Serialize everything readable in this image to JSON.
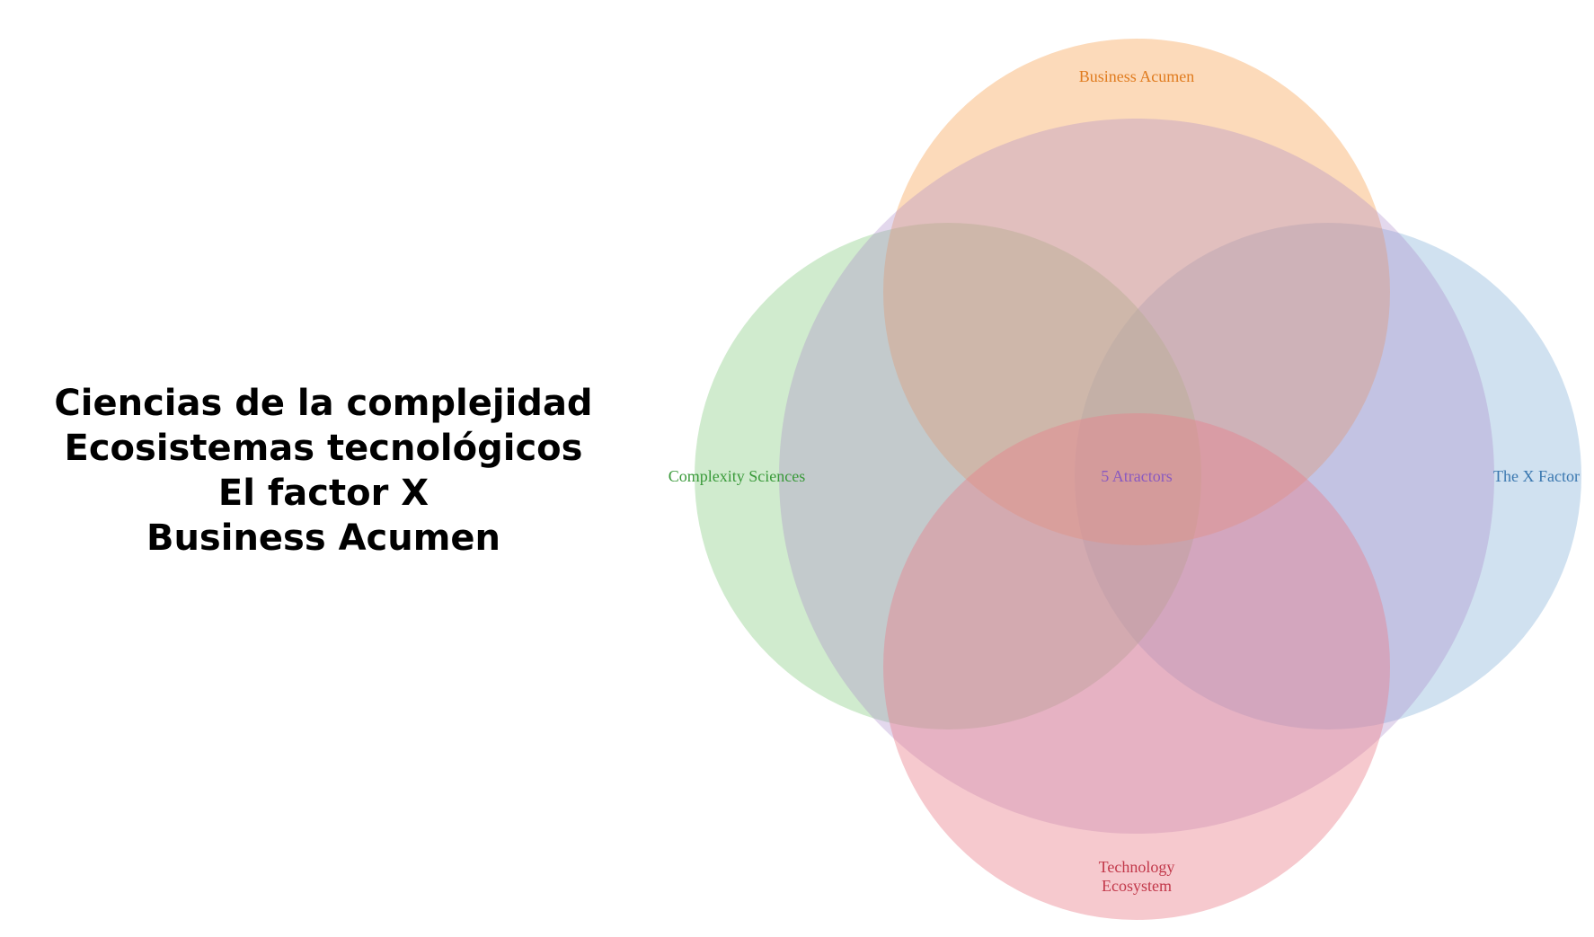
{
  "topics": [
    "Ciencias de la complejidad",
    "Ecosistemas tecnológicos",
    "El factor X",
    "Business Acumen"
  ],
  "venn": {
    "center_label": "5 Atractors",
    "sets": [
      {
        "id": "business-acumen",
        "label_lines": [
          "Business Acumen"
        ],
        "fill": "#f9a85a",
        "text": "#e07b1e"
      },
      {
        "id": "complexity-sciences",
        "label_lines": [
          "Complexity Sciences"
        ],
        "fill": "#8fd08a",
        "text": "#3a9a3a"
      },
      {
        "id": "x-factor",
        "label_lines": [
          "The X Factor"
        ],
        "fill": "#8fb8dc",
        "text": "#3b78b0"
      },
      {
        "id": "technology-ecosystem",
        "label_lines": [
          "Technology",
          "Ecosystem"
        ],
        "fill": "#ea7f8a",
        "text": "#c2384a"
      },
      {
        "id": "center",
        "label_lines": [],
        "fill": "#a886c8",
        "text": "#8a5ac0"
      }
    ]
  }
}
